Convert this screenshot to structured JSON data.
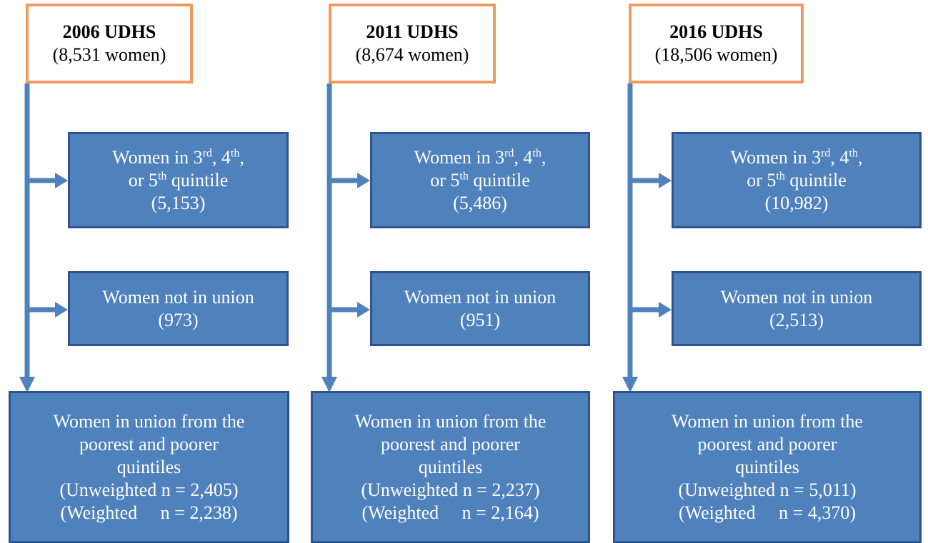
{
  "columns": [
    {
      "title": "2006 UDHS",
      "subtitle": "(8,531 women)",
      "quintile_box": {
        "lines": [
          [
            "Women in 3",
            "rd",
            ", 4",
            "th",
            ","
          ],
          [
            "or 5",
            "th",
            " quintile"
          ]
        ],
        "count": "(5,153)"
      },
      "union_box": {
        "label": "Women not in union",
        "count": "(973)"
      },
      "final_box": {
        "lines": [
          "Women in union from the",
          "poorest and poorer",
          "quintiles",
          "(Unweighted n = 2,405)",
          "(Weighted     n = 2,238)"
        ]
      }
    },
    {
      "title": "2011 UDHS",
      "subtitle": "(8,674 women)",
      "quintile_box": {
        "lines": [
          [
            "Women in 3",
            "rd",
            ", 4",
            "th",
            ","
          ],
          [
            "or 5",
            "th",
            " quintile"
          ]
        ],
        "count": "(5,486)"
      },
      "union_box": {
        "label": "Women not in union",
        "count": "(951)"
      },
      "final_box": {
        "lines": [
          "Women in union from the",
          "poorest and poorer",
          "quintiles",
          "(Unweighted n = 2,237)",
          "(Weighted     n = 2,164)"
        ]
      }
    },
    {
      "title": "2016 UDHS",
      "subtitle": "(18,506 women)",
      "quintile_box": {
        "lines": [
          [
            "Women in 3",
            "rd",
            ", 4",
            "th",
            ","
          ],
          [
            "or 5",
            "th",
            " quintile"
          ]
        ],
        "count": "(10,982)"
      },
      "union_box": {
        "label": "Women not in union",
        "count": "(2,513)"
      },
      "final_box": {
        "lines": [
          "Women in union from the",
          "poorest and poorer",
          "quintiles",
          "(Unweighted n = 5,011)",
          "(Weighted     n = 4,370)"
        ]
      }
    }
  ]
}
